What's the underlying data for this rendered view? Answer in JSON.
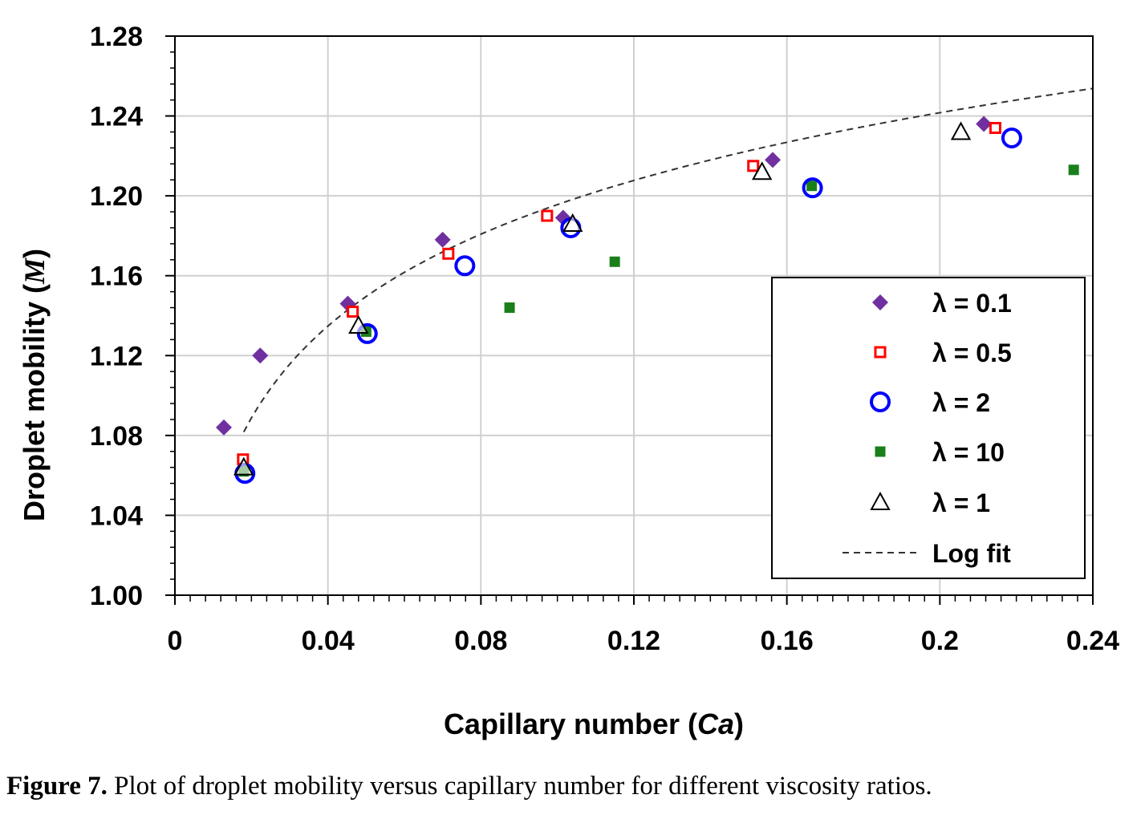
{
  "caption": {
    "label": "Figure 7.",
    "text": "Plot of droplet mobility versus capillary number for different viscosity ratios."
  },
  "chart_data": {
    "type": "scatter",
    "xlabel_main": "Capillary number (",
    "xlabel_sym": "Ca",
    "xlabel_end": ")",
    "ylabel_main": "Droplet mobility (",
    "ylabel_sym": "M",
    "ylabel_end": ")",
    "xlim": [
      0,
      0.24
    ],
    "ylim": [
      1.0,
      1.28
    ],
    "x_ticks": [
      0,
      0.04,
      0.08,
      0.12,
      0.16,
      0.2,
      0.24
    ],
    "x_tick_labels": [
      "0",
      "0.04",
      "0.08",
      "0.12",
      "0.16",
      "0.2",
      "0.24"
    ],
    "y_ticks": [
      1.0,
      1.04,
      1.08,
      1.12,
      1.16,
      1.2,
      1.24,
      1.28
    ],
    "y_tick_labels": [
      "1.00",
      "1.04",
      "1.08",
      "1.12",
      "1.16",
      "1.20",
      "1.24",
      "1.28"
    ],
    "grid": true,
    "legend_position": "lower-right",
    "series": [
      {
        "name": "λ = 0.1",
        "marker": "diamond",
        "color": "#7030a0",
        "x": [
          0.0128,
          0.0223,
          0.0452,
          0.07,
          0.1015,
          0.1563,
          0.2115
        ],
        "y": [
          1.084,
          1.12,
          1.146,
          1.178,
          1.189,
          1.218,
          1.236
        ]
      },
      {
        "name": "λ = 0.5",
        "marker": "open-square",
        "color": "#ff0000",
        "x": [
          0.0178,
          0.0465,
          0.0715,
          0.0973,
          0.1512,
          0.2145
        ],
        "y": [
          1.068,
          1.142,
          1.171,
          1.19,
          1.215,
          1.234
        ]
      },
      {
        "name": "λ = 2",
        "marker": "open-circle",
        "color": "#0000ff",
        "x": [
          0.0183,
          0.0503,
          0.0758,
          0.1035,
          0.1667,
          0.2188
        ],
        "y": [
          1.061,
          1.131,
          1.165,
          1.184,
          1.204,
          1.229
        ]
      },
      {
        "name": "λ = 10",
        "marker": "filled-square",
        "color": "#1a7f1a",
        "x": [
          0.018,
          0.05,
          0.0875,
          0.115,
          0.1665,
          0.235
        ],
        "y": [
          1.062,
          1.132,
          1.144,
          1.167,
          1.205,
          1.213
        ]
      },
      {
        "name": "λ = 1",
        "marker": "open-triangle",
        "color": "#000000",
        "x": [
          0.018,
          0.048,
          0.104,
          0.1535,
          0.2055
        ],
        "y": [
          1.064,
          1.135,
          1.186,
          1.212,
          1.232
        ]
      }
    ],
    "fit": {
      "name": "Log fit",
      "type": "log",
      "x_range": [
        0.018,
        0.24
      ],
      "a": 1.3485,
      "b": 0.0664
    }
  }
}
